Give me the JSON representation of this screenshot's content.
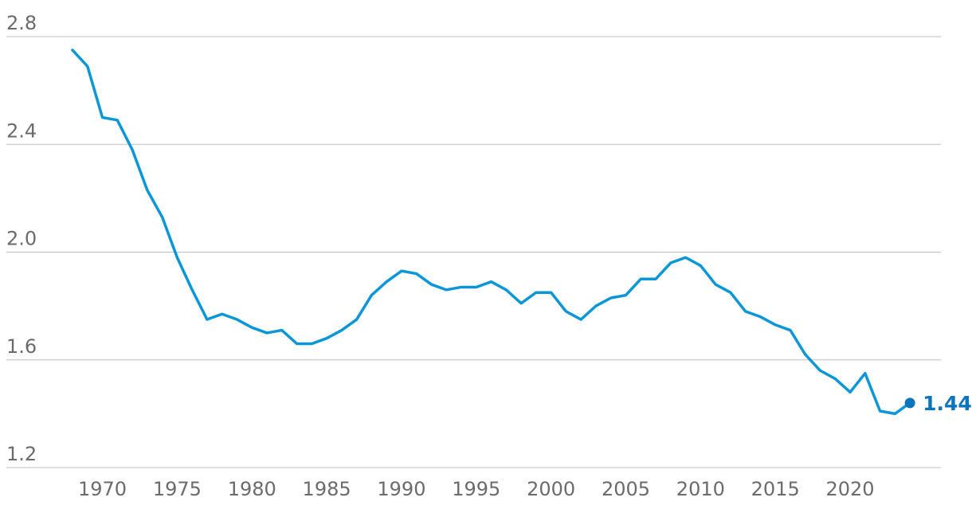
{
  "chart_data": {
    "type": "line",
    "title": "",
    "xlabel": "",
    "ylabel": "",
    "ylim": [
      1.2,
      2.8
    ],
    "xlim": [
      1968,
      2024
    ],
    "y_ticks": [
      "1.2",
      "1.6",
      "2.0",
      "2.4",
      "2.8"
    ],
    "x_ticks": [
      "1970",
      "1975",
      "1980",
      "1985",
      "1990",
      "1995",
      "2000",
      "2005",
      "2010",
      "2015",
      "2020"
    ],
    "grid": true,
    "legend": "none",
    "colors": {
      "series": "#0b96d6",
      "end_label": "#0a75bd",
      "grid": "#bdbdbd",
      "tick_label": "#6b6b6b"
    },
    "series": [
      {
        "x": [
          1968,
          1969,
          1970,
          1971,
          1972,
          1973,
          1974,
          1975,
          1976,
          1977,
          1978,
          1979,
          1980,
          1981,
          1982,
          1983,
          1984,
          1985,
          1986,
          1987,
          1988,
          1989,
          1990,
          1991,
          1992,
          1993,
          1994,
          1995,
          1996,
          1997,
          1998,
          1999,
          2000,
          2001,
          2002,
          2003,
          2004,
          2005,
          2006,
          2007,
          2008,
          2009,
          2010,
          2011,
          2012,
          2013,
          2014,
          2015,
          2016,
          2017,
          2018,
          2019,
          2020,
          2021,
          2022,
          2023,
          2024
        ],
        "values": [
          2.75,
          2.69,
          2.5,
          2.49,
          2.38,
          2.23,
          2.13,
          1.98,
          1.86,
          1.75,
          1.77,
          1.75,
          1.72,
          1.7,
          1.71,
          1.66,
          1.66,
          1.68,
          1.71,
          1.75,
          1.84,
          1.89,
          1.93,
          1.92,
          1.88,
          1.86,
          1.87,
          1.87,
          1.89,
          1.86,
          1.81,
          1.85,
          1.85,
          1.78,
          1.75,
          1.8,
          1.83,
          1.84,
          1.9,
          1.9,
          1.96,
          1.98,
          1.95,
          1.88,
          1.85,
          1.78,
          1.76,
          1.73,
          1.71,
          1.62,
          1.56,
          1.53,
          1.48,
          1.55,
          1.41,
          1.4,
          1.44
        ]
      }
    ],
    "annotations": [
      {
        "x": 2024,
        "y": 1.44,
        "text": "1.44"
      }
    ]
  }
}
